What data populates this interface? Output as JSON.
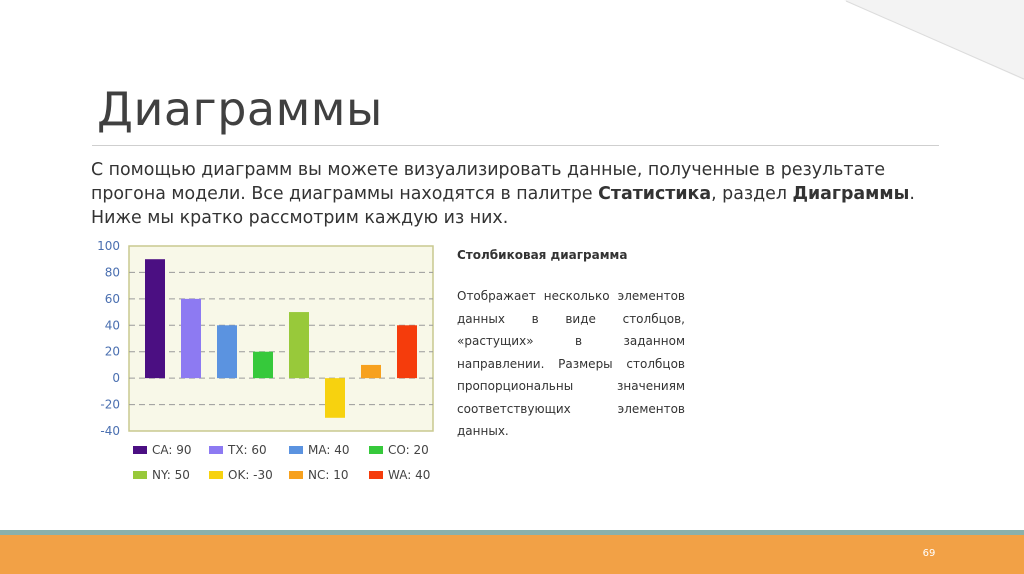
{
  "slide": {
    "title": "Диаграммы",
    "intro": {
      "part1": "С помощью диаграмм вы можете визуализировать данные, полученные в результате прогона модели. Все диаграммы находятся в палитре ",
      "bold1": "Статистика",
      "part2": ", раздел ",
      "bold2": "Диаграммы",
      "part3": ". Ниже мы кратко рассмотрим каждую из них."
    },
    "description": {
      "title": "Столбиковая диаграмма",
      "text": "Отображает несколько элементов данных в виде столбцов, «растущих» в заданном направлении. Размеры столбцов пропорциональны значениям соответствующих элементов данных."
    },
    "page_number": "69"
  },
  "colors": {
    "plot_background": "#f8f8e8",
    "plot_border": "#c9c98f",
    "bottom_bar": "#f2a146",
    "bottom_stripe": "#8ab0ab"
  },
  "chart_data": {
    "type": "bar",
    "categories": [
      "CA",
      "TX",
      "MA",
      "CO",
      "NY",
      "OK",
      "NC",
      "WA"
    ],
    "values": [
      90,
      60,
      40,
      20,
      50,
      -30,
      10,
      40
    ],
    "colors": [
      "#4b0f82",
      "#8d7af2",
      "#5b93e0",
      "#36c93b",
      "#98c93a",
      "#f7d20f",
      "#f7a11e",
      "#f53c0c"
    ],
    "legend": [
      "CA: 90",
      "TX: 60",
      "MA: 40",
      "CO: 20",
      "NY: 50",
      "OK: -30",
      "NC: 10",
      "WA: 40"
    ],
    "ylim": [
      -40,
      100
    ],
    "yticks": [
      100,
      80,
      60,
      40,
      20,
      0,
      -20,
      -40
    ],
    "grid": true,
    "legend_position": "bottom"
  }
}
